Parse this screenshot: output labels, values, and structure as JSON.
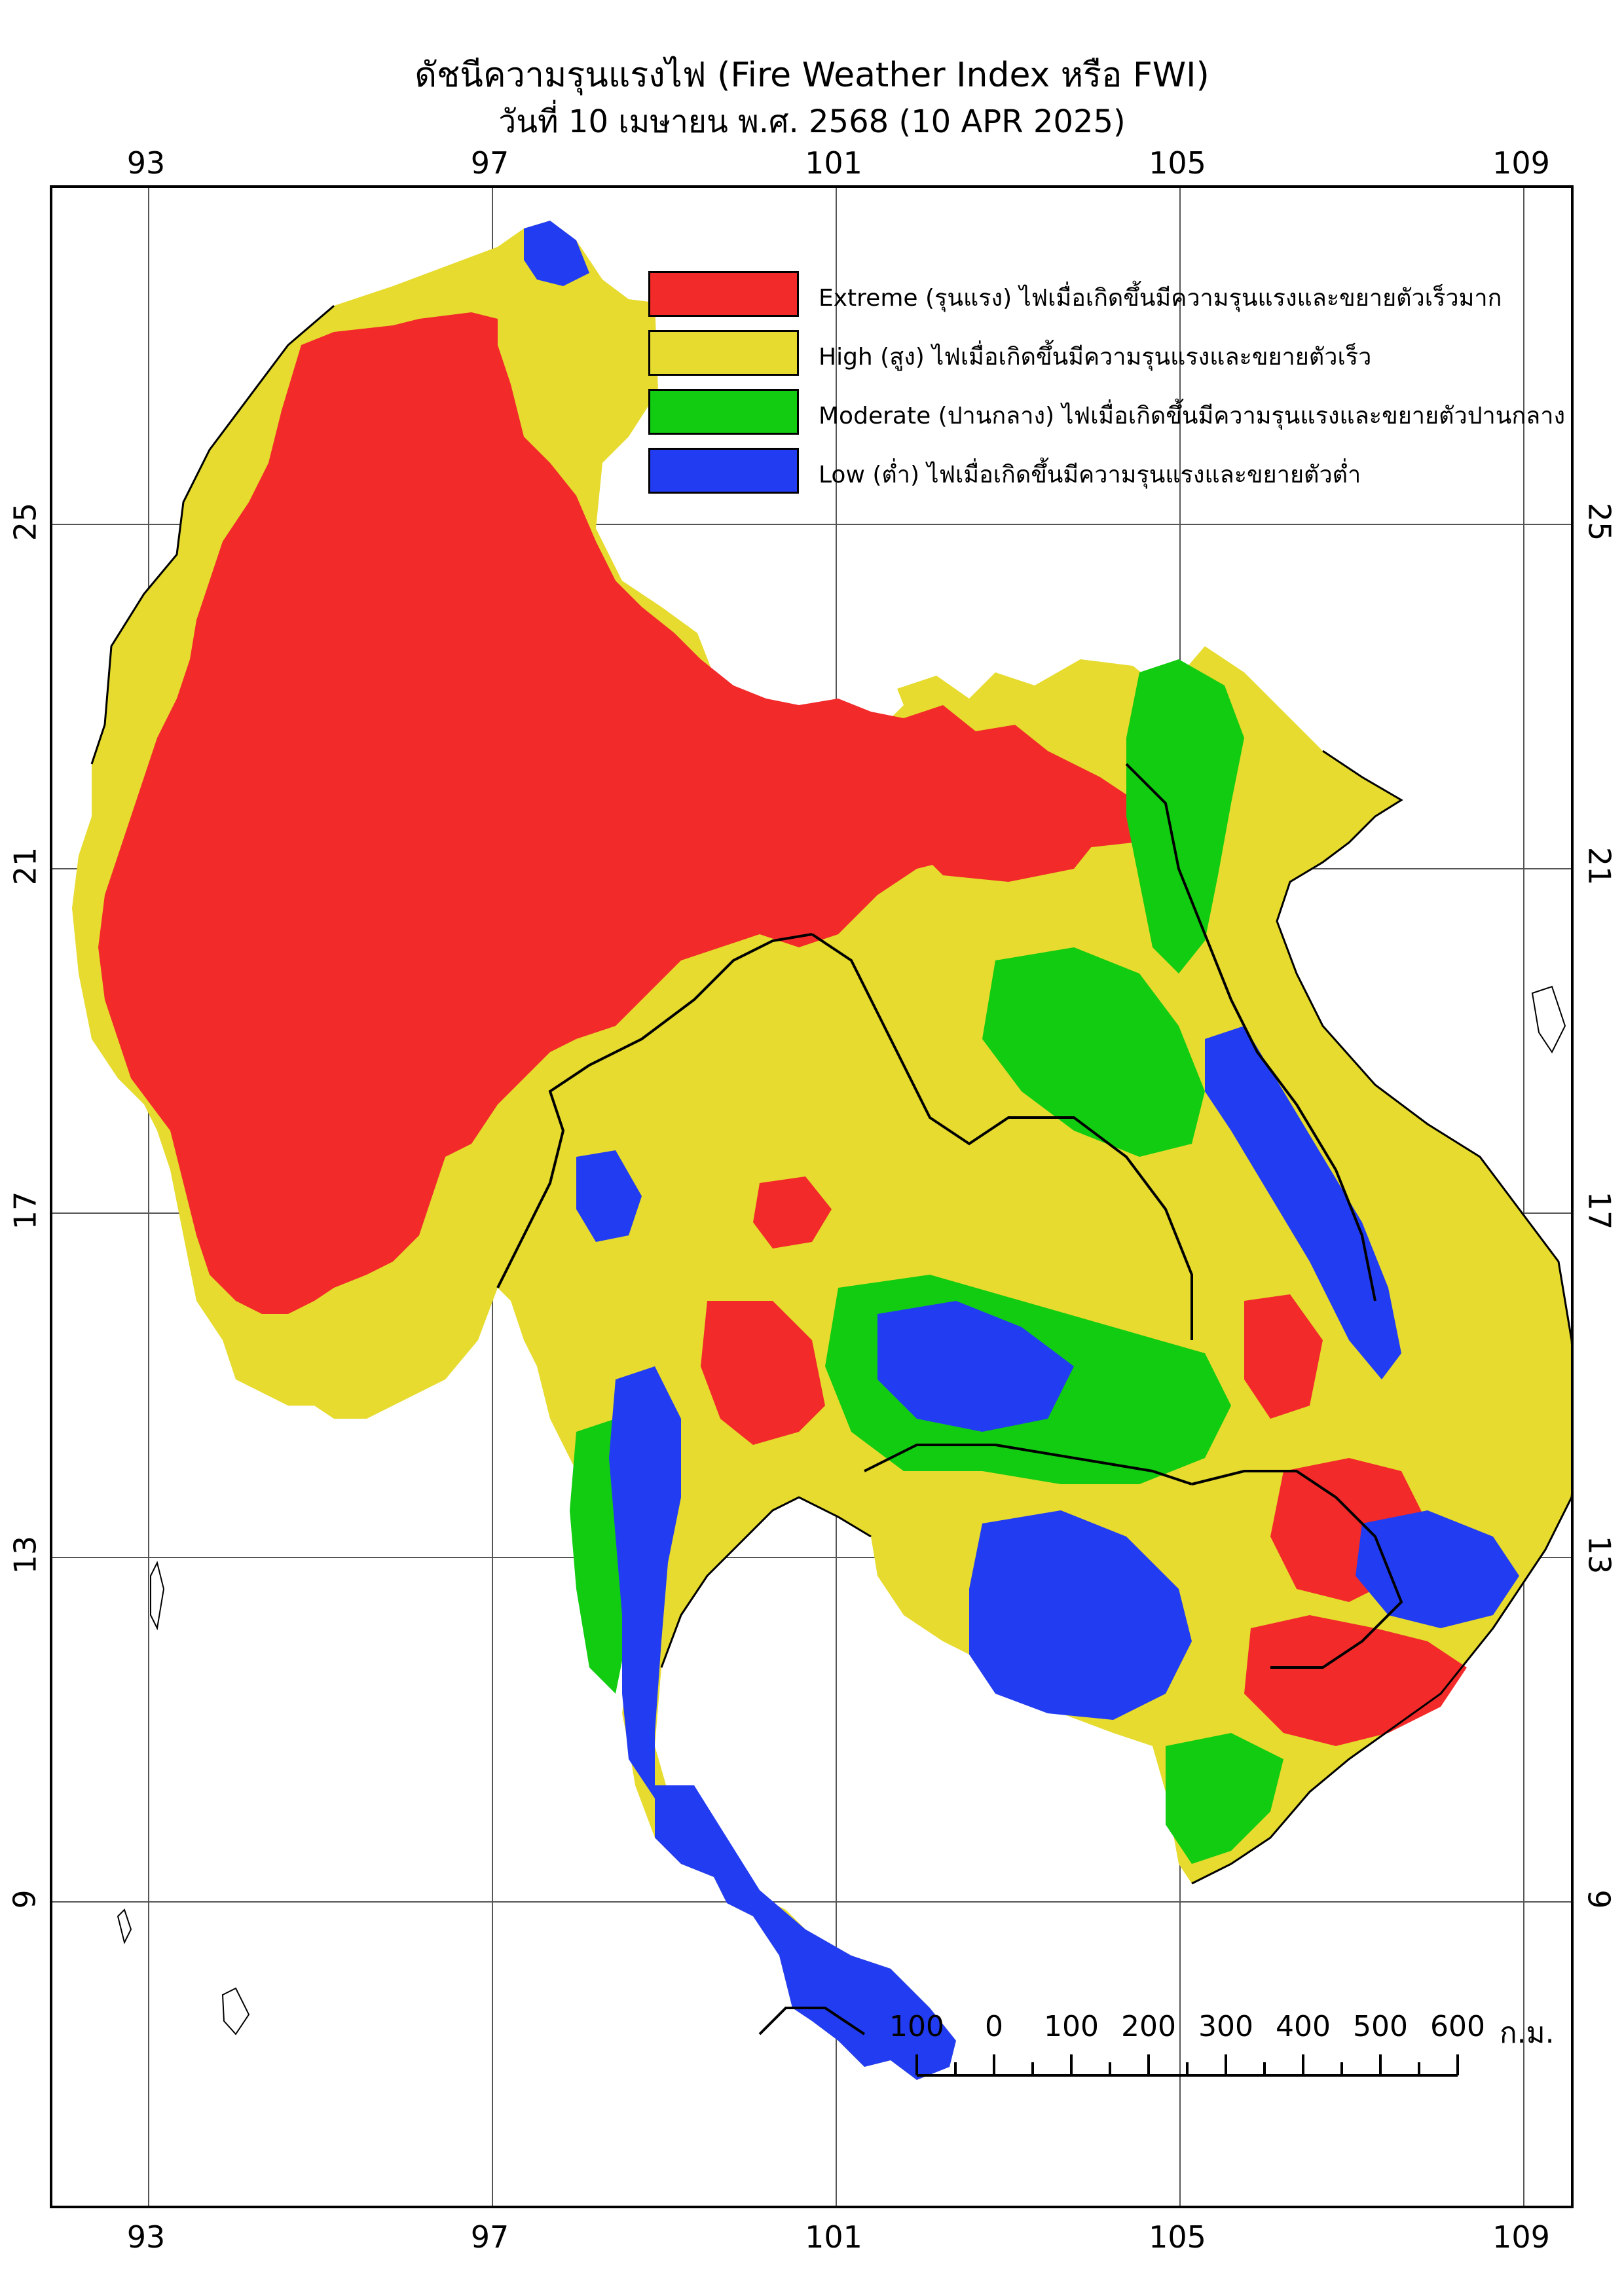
{
  "title_th": "ดัชนีความรุนแรงไฟ (Fire Weather Index หรือ FWI)",
  "subtitle": "วันที่ 10 เมษายน พ.ศ. 2568 (10 APR 2025)",
  "longitude_ticks": [
    "93",
    "97",
    "101",
    "105",
    "109"
  ],
  "latitude_ticks": [
    "25",
    "21",
    "17",
    "13",
    "9"
  ],
  "legend": [
    {
      "label": "Extreme (รุนแรง) ไฟเมื่อเกิดขึ้นมีความรุนแรงและขยายตัวเร็วมาก",
      "color": "#F22A2A"
    },
    {
      "label": "High (สูง) ไฟเมื่อเกิดขึ้นมีความรุนแรงและขยายตัวเร็ว",
      "color": "#E6DB2E"
    },
    {
      "label": "Moderate (ปานกลาง) ไฟเมื่อเกิดขึ้นมีความรุนแรงและขยายตัวปานกลาง",
      "color": "#12CC12"
    },
    {
      "label": "Low (ต่ำ) ไฟเมื่อเกิดขึ้นมีความรุนแรงและขยายตัวต่ำ",
      "color": "#223CF2"
    }
  ],
  "scale_bar": {
    "labels": [
      "100",
      "0",
      "100",
      "200",
      "300",
      "400",
      "500",
      "600"
    ],
    "unit": "ก.ม."
  },
  "map_extent": {
    "lon_min": 92,
    "lon_max": 109.5,
    "lat_min": 5.5,
    "lat_max": 28.5
  }
}
